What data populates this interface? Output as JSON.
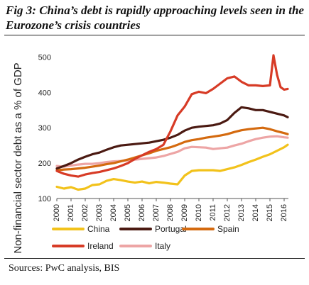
{
  "title": "Fig 3: China’s debt is rapidly approaching levels seen in the Eurozone’s crisis countries",
  "sources": "Sources: PwC analysis, BIS",
  "chart_data": {
    "type": "line",
    "title": "Fig 3: China’s debt is rapidly approaching levels seen in the Eurozone’s crisis countries",
    "ylabel": "Non-financial sector debt as a % of GDP",
    "xlabel": "",
    "ylim": [
      100,
      525
    ],
    "yticks": [
      100,
      200,
      300,
      400,
      500
    ],
    "xticks": [
      "2000",
      "2001",
      "2002",
      "2003",
      "2004",
      "2005",
      "2006",
      "2007",
      "2008",
      "2009",
      "2010",
      "2011",
      "2012",
      "2013",
      "2014",
      "2015",
      "2016"
    ],
    "grid": false,
    "legend_position": "bottom",
    "series": [
      {
        "name": "China",
        "color": "#f2c21b",
        "x": [
          2000,
          2000.5,
          2001,
          2001.5,
          2002,
          2002.5,
          2003,
          2003.5,
          2004,
          2004.5,
          2005,
          2005.5,
          2006,
          2006.5,
          2007,
          2007.5,
          2008,
          2008.5,
          2009,
          2009.5,
          2010,
          2010.5,
          2011,
          2011.5,
          2012,
          2012.5,
          2013,
          2013.5,
          2014,
          2014.5,
          2015,
          2015.5,
          2016,
          2016.25
        ],
        "values": [
          133,
          128,
          132,
          125,
          128,
          138,
          140,
          150,
          155,
          152,
          148,
          145,
          148,
          143,
          147,
          145,
          142,
          140,
          165,
          178,
          180,
          180,
          180,
          178,
          183,
          188,
          195,
          203,
          210,
          218,
          225,
          235,
          245,
          252
        ]
      },
      {
        "name": "Portugal",
        "color": "#4b1a12",
        "x": [
          2000,
          2000.5,
          2001,
          2001.5,
          2002,
          2002.5,
          2003,
          2003.5,
          2004,
          2004.5,
          2005,
          2005.5,
          2006,
          2006.5,
          2007,
          2007.5,
          2008,
          2008.5,
          2009,
          2009.5,
          2010,
          2010.5,
          2011,
          2011.5,
          2012,
          2012.5,
          2013,
          2013.5,
          2014,
          2014.5,
          2015,
          2015.5,
          2016,
          2016.25
        ],
        "values": [
          185,
          192,
          200,
          210,
          218,
          225,
          230,
          238,
          245,
          250,
          252,
          254,
          256,
          258,
          262,
          266,
          272,
          280,
          292,
          300,
          303,
          305,
          307,
          312,
          322,
          342,
          358,
          355,
          350,
          350,
          345,
          340,
          335,
          330
        ]
      },
      {
        "name": "Spain",
        "color": "#d46a0f",
        "x": [
          2000,
          2000.5,
          2001,
          2001.5,
          2002,
          2002.5,
          2003,
          2003.5,
          2004,
          2004.5,
          2005,
          2005.5,
          2006,
          2006.5,
          2007,
          2007.5,
          2008,
          2008.5,
          2009,
          2009.5,
          2010,
          2010.5,
          2011,
          2011.5,
          2012,
          2012.5,
          2013,
          2013.5,
          2014,
          2014.5,
          2015,
          2015.5,
          2016,
          2016.25
        ],
        "values": [
          180,
          182,
          183,
          185,
          187,
          190,
          193,
          197,
          200,
          205,
          210,
          216,
          222,
          228,
          235,
          240,
          245,
          252,
          260,
          265,
          268,
          272,
          275,
          278,
          282,
          288,
          293,
          296,
          298,
          300,
          296,
          290,
          285,
          282
        ]
      },
      {
        "name": "Ireland",
        "color": "#d73b26",
        "x": [
          2000,
          2000.5,
          2001,
          2001.5,
          2002,
          2002.5,
          2003,
          2003.5,
          2004,
          2004.5,
          2005,
          2005.5,
          2006,
          2006.5,
          2007,
          2007.5,
          2008,
          2008.5,
          2009,
          2009.5,
          2010,
          2010.5,
          2011,
          2011.5,
          2012,
          2012.5,
          2013,
          2013.5,
          2014,
          2014.5,
          2015,
          2015.25,
          2015.5,
          2015.75,
          2016,
          2016.25
        ],
        "values": [
          178,
          170,
          165,
          162,
          168,
          172,
          175,
          180,
          185,
          192,
          200,
          212,
          222,
          232,
          240,
          252,
          290,
          335,
          360,
          395,
          402,
          398,
          410,
          425,
          440,
          445,
          430,
          420,
          420,
          418,
          420,
          505,
          450,
          415,
          408,
          410
        ]
      },
      {
        "name": "Italy",
        "color": "#eda5a5",
        "x": [
          2000,
          2000.5,
          2001,
          2001.5,
          2002,
          2002.5,
          2003,
          2003.5,
          2004,
          2004.5,
          2005,
          2005.5,
          2006,
          2006.5,
          2007,
          2007.5,
          2008,
          2008.5,
          2009,
          2009.5,
          2010,
          2010.5,
          2011,
          2011.5,
          2012,
          2012.5,
          2013,
          2013.5,
          2014,
          2014.5,
          2015,
          2015.5,
          2016,
          2016.25
        ],
        "values": [
          192,
          190,
          193,
          196,
          198,
          198,
          200,
          203,
          205,
          206,
          208,
          210,
          212,
          214,
          216,
          220,
          226,
          232,
          242,
          246,
          245,
          244,
          240,
          242,
          244,
          250,
          255,
          262,
          268,
          272,
          275,
          276,
          273,
          272
        ]
      }
    ]
  }
}
